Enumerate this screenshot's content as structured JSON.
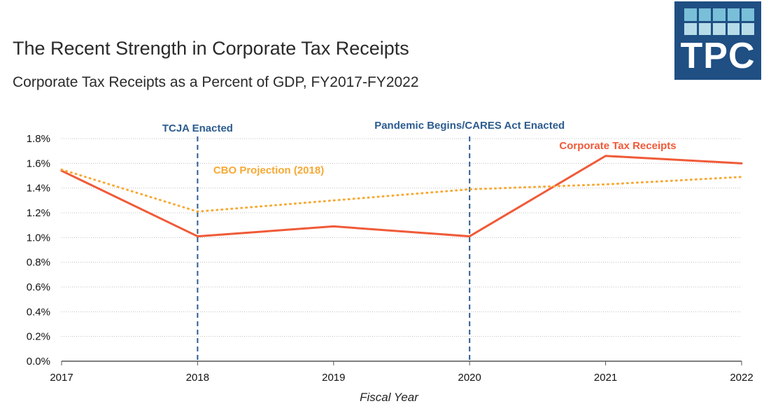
{
  "header": {
    "title": "The Recent Strength in Corporate Tax Receipts",
    "subtitle": "Corporate Tax Receipts as a Percent of GDP, FY2017-FY2022"
  },
  "logo": {
    "text": "TPC",
    "background_color": "#1F4F83",
    "accent_color": "#79BFD8"
  },
  "chart_data": {
    "type": "line",
    "x": [
      2017,
      2018,
      2019,
      2020,
      2021,
      2022
    ],
    "x_tick_labels": [
      "2017",
      "2018",
      "2019",
      "2020",
      "2021",
      "2022"
    ],
    "series": [
      {
        "name": "Corporate Tax Receipts",
        "values": [
          1.54,
          1.01,
          1.09,
          1.01,
          1.66,
          1.6
        ],
        "color": "#F05A38",
        "line_style": "solid"
      },
      {
        "name": "CBO Projection (2018)",
        "values": [
          1.55,
          1.21,
          1.3,
          1.39,
          1.43,
          1.49
        ],
        "color": "#F7A934",
        "line_style": "dotted"
      }
    ],
    "xlabel": "Fiscal Year",
    "ylabel": "",
    "ylim": [
      0,
      1.8
    ],
    "y_ticks": [
      0,
      0.2,
      0.4,
      0.6,
      0.8,
      1,
      1.2,
      1.4,
      1.6,
      1.8
    ],
    "y_tick_labels": [
      "0.0%",
      "0.2%",
      "0.4%",
      "0.6%",
      "0.8%",
      "1.0%",
      "1.2%",
      "1.4%",
      "1.6%",
      "1.8%"
    ],
    "grid": true,
    "legend": "inline labels",
    "events": [
      {
        "label": "TCJA Enacted",
        "x": 2018,
        "color": "#2C5C8F"
      },
      {
        "label": "Pandemic Begins/CARES Act Enacted",
        "x": 2020,
        "color": "#2C5C8F"
      }
    ],
    "gridline_color": "#BFBFBF",
    "axis_color": "#555555"
  }
}
